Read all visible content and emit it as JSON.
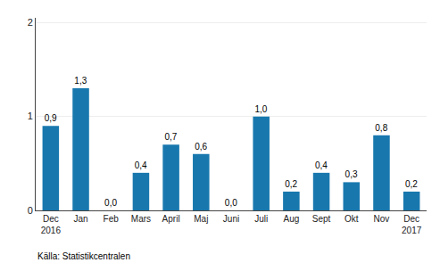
{
  "chart_data": {
    "type": "bar",
    "categories": [
      "Dec\n2016",
      "Jan",
      "Feb",
      "Mars",
      "April",
      "Maj",
      "Juni",
      "Juli",
      "Aug",
      "Sept",
      "Okt",
      "Nov",
      "Dec\n2017"
    ],
    "values": [
      0.9,
      1.3,
      0.0,
      0.4,
      0.7,
      0.6,
      0.0,
      1.0,
      0.2,
      0.4,
      0.3,
      0.8,
      0.2
    ],
    "value_labels": [
      "0,9",
      "1,3",
      "0,0",
      "0,4",
      "0,7",
      "0,6",
      "0,0",
      "1,0",
      "0,2",
      "0,4",
      "0,3",
      "0,8",
      "0,2"
    ],
    "data_labels": true,
    "color": "#1878ae",
    "ylim": [
      0,
      2.05
    ],
    "yticks": [
      0,
      1,
      2
    ],
    "grid": true,
    "annotations": [
      "Källa: Statistikcentralen"
    ]
  }
}
